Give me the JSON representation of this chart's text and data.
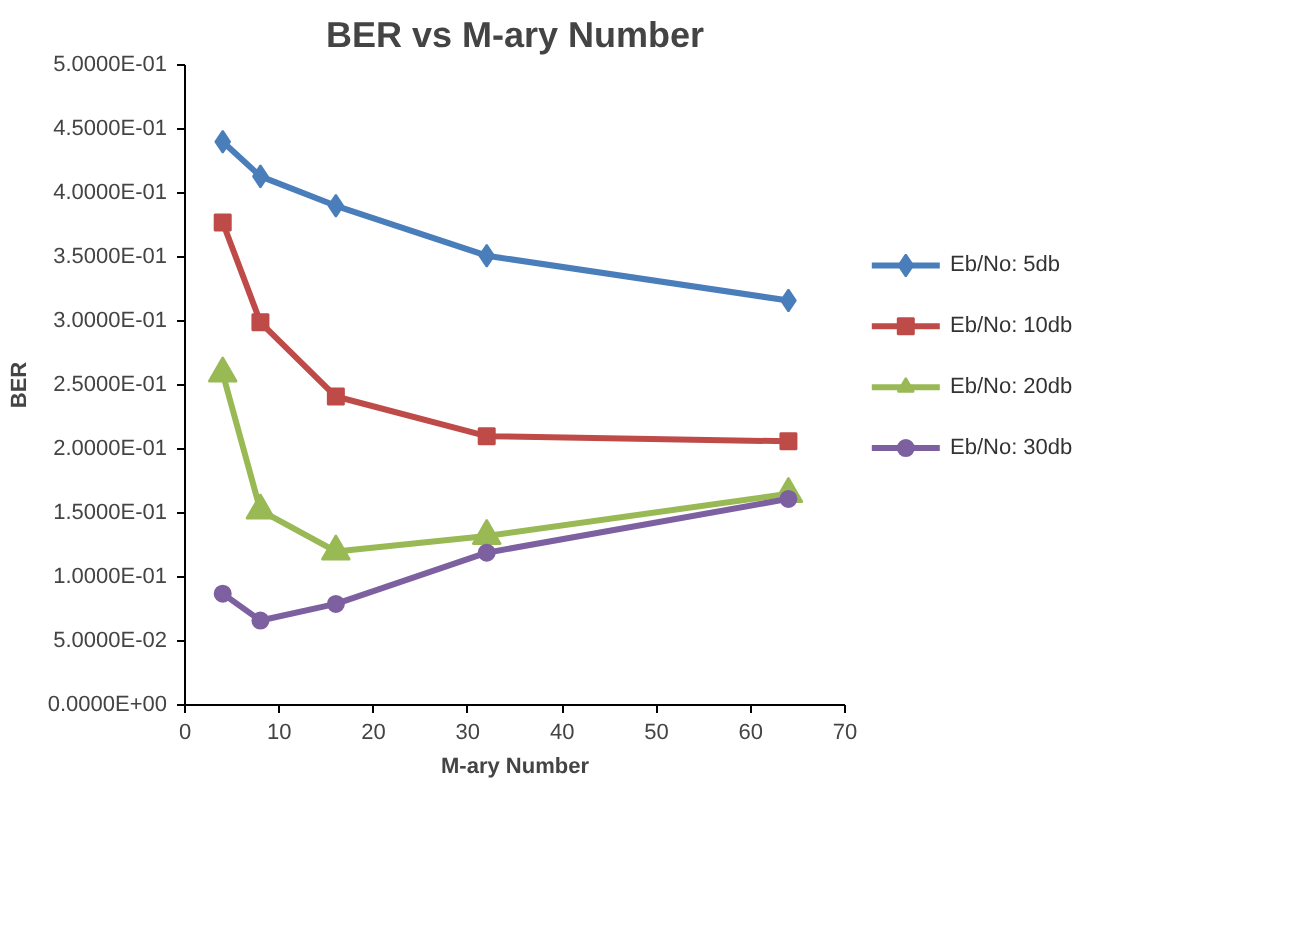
{
  "chart_data": {
    "type": "line",
    "title": "BER vs M-ary Number",
    "xlabel": "M-ary Number",
    "ylabel": "BER",
    "x": [
      4,
      8,
      16,
      32,
      64
    ],
    "series": [
      {
        "name": "Eb/No: 5db",
        "color": "#4a7ebb",
        "marker": "diamond",
        "values": [
          0.44,
          0.413,
          0.39,
          0.351,
          0.316
        ]
      },
      {
        "name": "Eb/No: 10db",
        "color": "#be4b48",
        "marker": "square",
        "values": [
          0.377,
          0.299,
          0.241,
          0.21,
          0.206
        ]
      },
      {
        "name": "Eb/No: 20db",
        "color": "#98b954",
        "marker": "triangle",
        "values": [
          0.259,
          0.152,
          0.12,
          0.132,
          0.165
        ]
      },
      {
        "name": "Eb/No: 30db",
        "color": "#7d60a0",
        "marker": "circle",
        "values": [
          0.087,
          0.066,
          0.079,
          0.119,
          0.161
        ]
      }
    ],
    "xlim": [
      0,
      70
    ],
    "xticks": [
      0,
      10,
      20,
      30,
      40,
      50,
      60,
      70
    ],
    "ylim": [
      0,
      0.5
    ],
    "yticks": [
      {
        "value": 0,
        "label": "0.0000E+00"
      },
      {
        "value": 0.05,
        "label": "5.0000E-02"
      },
      {
        "value": 0.1,
        "label": "1.0000E-01"
      },
      {
        "value": 0.15,
        "label": "1.5000E-01"
      },
      {
        "value": 0.2,
        "label": "2.0000E-01"
      },
      {
        "value": 0.25,
        "label": "2.5000E-01"
      },
      {
        "value": 0.3,
        "label": "3.0000E-01"
      },
      {
        "value": 0.35,
        "label": "3.5000E-01"
      },
      {
        "value": 0.4,
        "label": "4.0000E-01"
      },
      {
        "value": 0.45,
        "label": "4.5000E-01"
      },
      {
        "value": 0.5,
        "label": "5.0000E-01"
      }
    ],
    "grid": false,
    "legend": "right",
    "line_style": "solid"
  }
}
